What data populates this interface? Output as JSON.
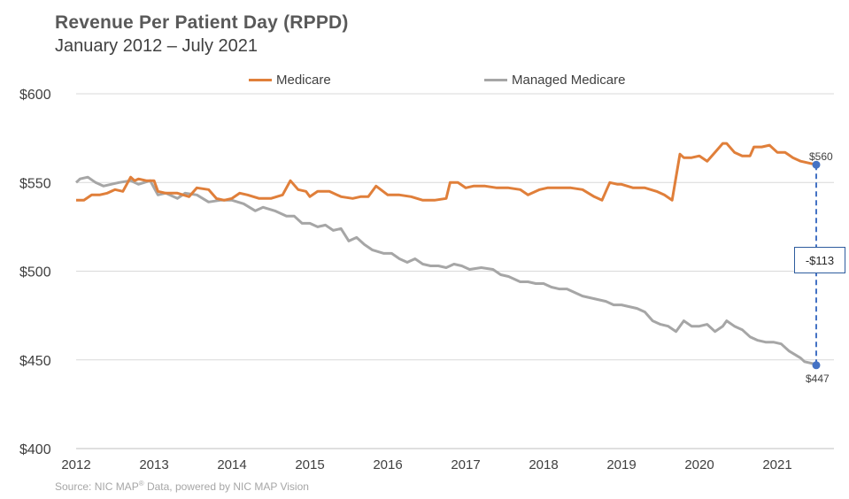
{
  "chart_data": {
    "type": "line",
    "title": "Revenue Per Patient Day (RPPD)",
    "subtitle": "January  2012 – July 2021",
    "source": "Source: NIC MAP® Data, powered  by NIC MAP Vision",
    "source_parts": {
      "pre": "Source: NIC MAP",
      "sup": "®",
      "post": " Data, powered  by NIC MAP Vision"
    },
    "xlabel": "",
    "ylabel": "",
    "ylim": [
      400,
      600
    ],
    "xlim": [
      2012,
      2021.6
    ],
    "y_ticks": [
      400,
      450,
      500,
      550,
      600
    ],
    "y_tick_labels": [
      "$400",
      "$450",
      "$500",
      "$550",
      "$600"
    ],
    "x_ticks": [
      2012,
      2013,
      2014,
      2015,
      2016,
      2017,
      2018,
      2019,
      2020,
      2021
    ],
    "x_tick_labels": [
      "2012",
      "2013",
      "2014",
      "2015",
      "2016",
      "2017",
      "2018",
      "2019",
      "2020",
      "2021"
    ],
    "legend_position": "top-center",
    "series": [
      {
        "name": "Medicare",
        "color": "#e07f3a",
        "x": [
          2012.0,
          2012.1,
          2012.2,
          2012.3,
          2012.4,
          2012.5,
          2012.6,
          2012.7,
          2012.75,
          2012.8,
          2012.9,
          2013.0,
          2013.05,
          2013.15,
          2013.3,
          2013.45,
          2013.55,
          2013.7,
          2013.8,
          2013.9,
          2014.0,
          2014.1,
          2014.2,
          2014.35,
          2014.5,
          2014.65,
          2014.75,
          2014.85,
          2014.95,
          2015.0,
          2015.1,
          2015.25,
          2015.4,
          2015.55,
          2015.65,
          2015.75,
          2015.85,
          2016.0,
          2016.15,
          2016.3,
          2016.45,
          2016.6,
          2016.75,
          2016.8,
          2016.9,
          2017.0,
          2017.1,
          2017.25,
          2017.4,
          2017.55,
          2017.7,
          2017.8,
          2017.95,
          2018.05,
          2018.2,
          2018.35,
          2018.5,
          2018.65,
          2018.75,
          2018.85,
          2018.95,
          2019.0,
          2019.15,
          2019.3,
          2019.45,
          2019.55,
          2019.65,
          2019.75,
          2019.8,
          2019.9,
          2020.0,
          2020.1,
          2020.2,
          2020.3,
          2020.35,
          2020.45,
          2020.55,
          2020.65,
          2020.7,
          2020.8,
          2020.9,
          2021.0,
          2021.1,
          2021.2,
          2021.3,
          2021.4,
          2021.5
        ],
        "values": [
          540,
          540,
          543,
          543,
          544,
          546,
          545,
          553,
          551,
          552,
          551,
          551,
          545,
          544,
          544,
          542,
          547,
          546,
          541,
          540,
          541,
          544,
          543,
          541,
          541,
          543,
          551,
          546,
          545,
          542,
          545,
          545,
          542,
          541,
          542,
          542,
          548,
          543,
          543,
          542,
          540,
          540,
          541,
          550,
          550,
          547,
          548,
          548,
          547,
          547,
          546,
          543,
          546,
          547,
          547,
          547,
          546,
          542,
          540,
          550,
          549,
          549,
          547,
          547,
          545,
          543,
          540,
          566,
          564,
          564,
          565,
          562,
          567,
          572,
          572,
          567,
          565,
          565,
          570,
          570,
          571,
          567,
          567,
          564,
          562,
          561,
          560
        ]
      },
      {
        "name": "Managed Medicare",
        "color": "#a6a6a6",
        "x": [
          2012.0,
          2012.05,
          2012.15,
          2012.25,
          2012.35,
          2012.45,
          2012.55,
          2012.7,
          2012.8,
          2012.95,
          2013.05,
          2013.15,
          2013.3,
          2013.4,
          2013.55,
          2013.7,
          2013.85,
          2014.0,
          2014.15,
          2014.3,
          2014.4,
          2014.55,
          2014.7,
          2014.8,
          2014.9,
          2015.0,
          2015.1,
          2015.2,
          2015.3,
          2015.4,
          2015.5,
          2015.6,
          2015.7,
          2015.8,
          2015.95,
          2016.05,
          2016.15,
          2016.25,
          2016.35,
          2016.45,
          2016.55,
          2016.65,
          2016.75,
          2016.85,
          2016.95,
          2017.05,
          2017.2,
          2017.35,
          2017.45,
          2017.55,
          2017.7,
          2017.8,
          2017.9,
          2018.0,
          2018.1,
          2018.2,
          2018.3,
          2018.4,
          2018.5,
          2018.6,
          2018.7,
          2018.8,
          2018.9,
          2019.0,
          2019.1,
          2019.2,
          2019.3,
          2019.4,
          2019.5,
          2019.6,
          2019.7,
          2019.8,
          2019.9,
          2020.0,
          2020.1,
          2020.2,
          2020.3,
          2020.35,
          2020.45,
          2020.55,
          2020.65,
          2020.75,
          2020.85,
          2020.95,
          2021.05,
          2021.15,
          2021.3,
          2021.35,
          2021.45,
          2021.5
        ],
        "values": [
          550,
          552,
          553,
          550,
          548,
          549,
          550,
          551,
          549,
          551,
          543,
          544,
          541,
          544,
          543,
          539,
          540,
          540,
          538,
          534,
          536,
          534,
          531,
          531,
          527,
          527,
          525,
          526,
          523,
          524,
          517,
          519,
          515,
          512,
          510,
          510,
          507,
          505,
          507,
          504,
          503,
          503,
          502,
          504,
          503,
          501,
          502,
          501,
          498,
          497,
          494,
          494,
          493,
          493,
          491,
          490,
          490,
          488,
          486,
          485,
          484,
          483,
          481,
          481,
          480,
          479,
          477,
          472,
          470,
          469,
          466,
          472,
          469,
          469,
          470,
          466,
          469,
          472,
          469,
          467,
          463,
          461,
          460,
          460,
          459,
          455,
          451,
          449,
          448,
          447
        ]
      }
    ],
    "annotations": {
      "end_label_medicare": "$560",
      "end_label_managed": "$447",
      "difference_label": "-$113",
      "end_x": 2021.5,
      "end_values": [
        560,
        447
      ],
      "marker_color": "#4472c4"
    }
  }
}
